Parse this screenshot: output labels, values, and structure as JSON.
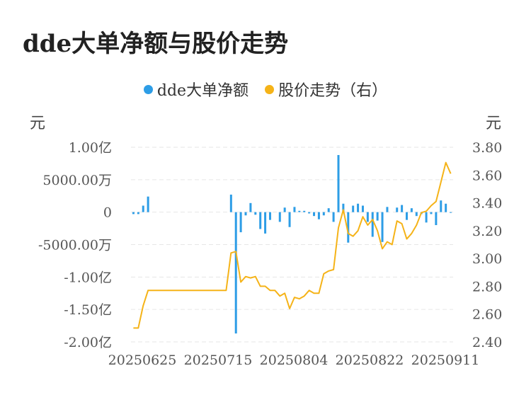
{
  "title": "dde大单净额与股价走势",
  "legend": {
    "items": [
      {
        "label": "dde大单净额",
        "color": "#2d9de6"
      },
      {
        "label": "股价走势（右）",
        "color": "#f5b318"
      }
    ]
  },
  "units": {
    "left": "元",
    "right": "元"
  },
  "chart_data": {
    "type": "bar+line",
    "title": "dde大单净额与股价走势",
    "x_tick_labels": [
      "20250625",
      "20250715",
      "20250804",
      "20250822",
      "20250911"
    ],
    "y_left": {
      "ticks": [
        {
          "value": 100000000,
          "label": "1.00亿"
        },
        {
          "value": 50000000,
          "label": "5000.00万"
        },
        {
          "value": 0,
          "label": "0"
        },
        {
          "value": -50000000,
          "label": "-5000.00万"
        },
        {
          "value": -100000000,
          "label": "-1.00亿"
        },
        {
          "value": -150000000,
          "label": "-1.50亿"
        },
        {
          "value": -200000000,
          "label": "-2.00亿"
        }
      ],
      "range": [
        -200000000,
        100000000
      ]
    },
    "y_right": {
      "ticks": [
        {
          "value": 3.8,
          "label": "3.80"
        },
        {
          "value": 3.6,
          "label": "3.60"
        },
        {
          "value": 3.4,
          "label": "3.40"
        },
        {
          "value": 3.2,
          "label": "3.20"
        },
        {
          "value": 3.0,
          "label": "3.00"
        },
        {
          "value": 2.8,
          "label": "2.80"
        },
        {
          "value": 2.6,
          "label": "2.60"
        },
        {
          "value": 2.4,
          "label": "2.40"
        }
      ],
      "range": [
        2.4,
        3.8
      ]
    },
    "grid": true,
    "legend_position": "top-center",
    "series": [
      {
        "name": "dde大单净额",
        "kind": "bar",
        "axis": "left",
        "color": "#2d9de6",
        "values": [
          -3000000,
          -3000000,
          10000000,
          24000000,
          0,
          0,
          0,
          0,
          0,
          0,
          0,
          0,
          0,
          0,
          0,
          0,
          0,
          0,
          0,
          0,
          27000000,
          -187000000,
          -31000000,
          -5000000,
          14000000,
          -4000000,
          -26000000,
          -33000000,
          -12000000,
          0,
          -15000000,
          7000000,
          -23000000,
          8000000,
          2000000,
          2000000,
          -2000000,
          -6000000,
          -11000000,
          -5000000,
          6000000,
          -15000000,
          88000000,
          13000000,
          -47000000,
          10000000,
          13000000,
          10000000,
          -15000000,
          -38000000,
          -13000000,
          -46000000,
          8000000,
          0,
          7000000,
          11000000,
          -12000000,
          6000000,
          -6000000,
          -3000000,
          -16000000,
          -3000000,
          -20000000,
          18000000,
          13000000,
          -1000000
        ]
      },
      {
        "name": "股价走势（右）",
        "kind": "line",
        "axis": "right",
        "color": "#f5b318",
        "values": [
          2.5,
          2.5,
          2.66,
          2.77,
          2.77,
          2.77,
          2.77,
          2.77,
          2.77,
          2.77,
          2.77,
          2.77,
          2.77,
          2.77,
          2.77,
          2.77,
          2.77,
          2.77,
          2.77,
          2.77,
          3.04,
          3.05,
          2.83,
          2.87,
          2.86,
          2.87,
          2.8,
          2.8,
          2.77,
          2.77,
          2.73,
          2.75,
          2.64,
          2.72,
          2.71,
          2.73,
          2.77,
          2.75,
          2.75,
          2.89,
          2.91,
          2.92,
          3.22,
          3.35,
          3.18,
          3.16,
          3.2,
          3.3,
          3.24,
          3.28,
          3.2,
          3.07,
          3.12,
          3.1,
          3.27,
          3.25,
          3.14,
          3.18,
          3.24,
          3.33,
          3.34,
          3.38,
          3.41,
          3.55,
          3.69,
          3.61
        ]
      }
    ]
  }
}
